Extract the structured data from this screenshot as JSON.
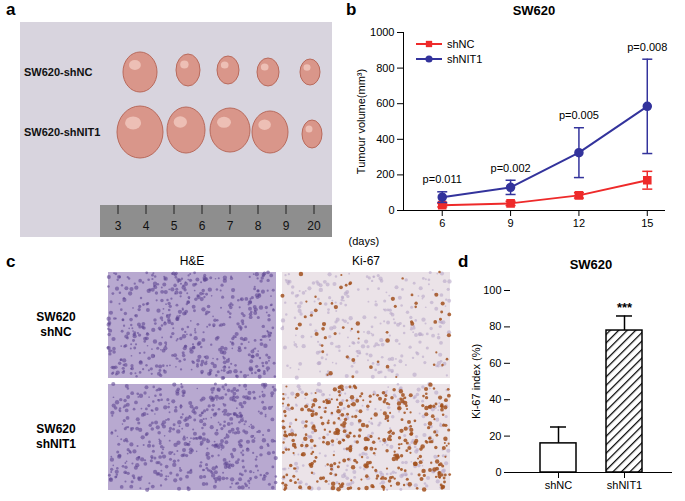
{
  "chart_data": [
    {
      "panel": "b",
      "type": "line",
      "title": "SW620",
      "x_label": "(days)",
      "y_label": "Tumour volume(mm³)",
      "x": [
        6,
        9,
        12,
        15
      ],
      "xlim": [
        4.3,
        15.8
      ],
      "xticks": [
        6,
        9,
        12,
        15
      ],
      "ylim": [
        0,
        1000
      ],
      "yticks": [
        0,
        200,
        400,
        600,
        800,
        1000
      ],
      "series": [
        {
          "name": "shNC",
          "color": "#ee2a2a",
          "marker": "square",
          "values": [
            30,
            40,
            85,
            170
          ],
          "errors": [
            10,
            12,
            15,
            50
          ]
        },
        {
          "name": "shNIT1",
          "color": "#33339c",
          "marker": "circle",
          "values": [
            75,
            130,
            325,
            585
          ],
          "errors": [
            30,
            40,
            140,
            265
          ]
        }
      ],
      "p_values": [
        "p=0.011",
        "p=0.002",
        "p=0.005",
        "p=0.008"
      ],
      "legend": "top-left"
    },
    {
      "panel": "d",
      "type": "bar",
      "title": "SW620",
      "y_label": "Ki-67 index (%)",
      "categories": [
        "shNC",
        "shNIT1"
      ],
      "values": [
        16,
        78
      ],
      "errors": [
        9,
        8
      ],
      "colors": [
        "#ffffff",
        "#000000"
      ],
      "ylim": [
        0,
        100
      ],
      "yticks": [
        0,
        20,
        40,
        60,
        80,
        100
      ],
      "significance": [
        null,
        "***"
      ]
    }
  ],
  "images": [
    {
      "panel": "a",
      "row_labels": [
        "SW620-shNC",
        "SW620-shNIT1"
      ],
      "ruler_labels": [
        3,
        4,
        5,
        6,
        7,
        8,
        9,
        20
      ]
    },
    {
      "panel": "c",
      "column_labels": [
        "H&E",
        "Ki-67"
      ],
      "row_labels": [
        [
          "SW620",
          "shNC"
        ],
        [
          "SW620",
          "shNIT1"
        ]
      ]
    }
  ]
}
